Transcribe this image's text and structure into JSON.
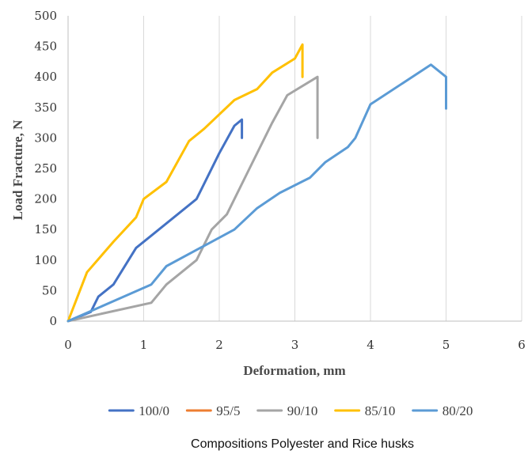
{
  "chart_data": {
    "type": "line",
    "title": "",
    "xlabel": "Deformation, mm",
    "ylabel": "Load Fracture, N",
    "xlim": [
      0,
      6
    ],
    "ylim": [
      0,
      500
    ],
    "xticks": [
      "0",
      "1",
      "2",
      "3",
      "4",
      "5",
      "6"
    ],
    "yticks": [
      "0",
      "50",
      "100",
      "150",
      "200",
      "250",
      "300",
      "350",
      "400",
      "450",
      "500"
    ],
    "grid": "vertical",
    "legend": "bottom",
    "caption": "Compositions Polyester and Rice husks",
    "series": [
      {
        "name": "100/0",
        "color": "#4472c4",
        "x": [
          0,
          0.3,
          0.4,
          0.6,
          0.9,
          1.1,
          1.7,
          2.0,
          2.2,
          2.3,
          2.3
        ],
        "y": [
          0,
          15,
          40,
          60,
          120,
          140,
          200,
          275,
          320,
          330,
          300
        ]
      },
      {
        "name": "95/5",
        "color": "#ed7d31",
        "x": [],
        "y": []
      },
      {
        "name": "90/10",
        "color": "#a5a5a5",
        "x": [
          0,
          1.1,
          1.3,
          1.7,
          1.9,
          2.1,
          2.4,
          2.7,
          2.9,
          3.3,
          3.3
        ],
        "y": [
          0,
          30,
          60,
          100,
          150,
          175,
          250,
          325,
          370,
          400,
          300
        ]
      },
      {
        "name": "85/10",
        "color": "#ffc000",
        "x": [
          0,
          0.25,
          0.6,
          0.9,
          1.0,
          1.3,
          1.6,
          1.8,
          2.2,
          2.5,
          2.7,
          3.0,
          3.1,
          3.1
        ],
        "y": [
          0,
          80,
          130,
          170,
          200,
          228,
          295,
          315,
          362,
          380,
          407,
          430,
          453,
          400
        ]
      },
      {
        "name": "80/20",
        "color": "#5b9bd5",
        "x": [
          0,
          1.1,
          1.3,
          2.2,
          2.5,
          2.8,
          3.2,
          3.4,
          3.7,
          3.8,
          4.0,
          4.8,
          5.0,
          5.0
        ],
        "y": [
          0,
          60,
          90,
          150,
          185,
          210,
          235,
          260,
          285,
          300,
          355,
          420,
          400,
          348
        ]
      }
    ]
  }
}
